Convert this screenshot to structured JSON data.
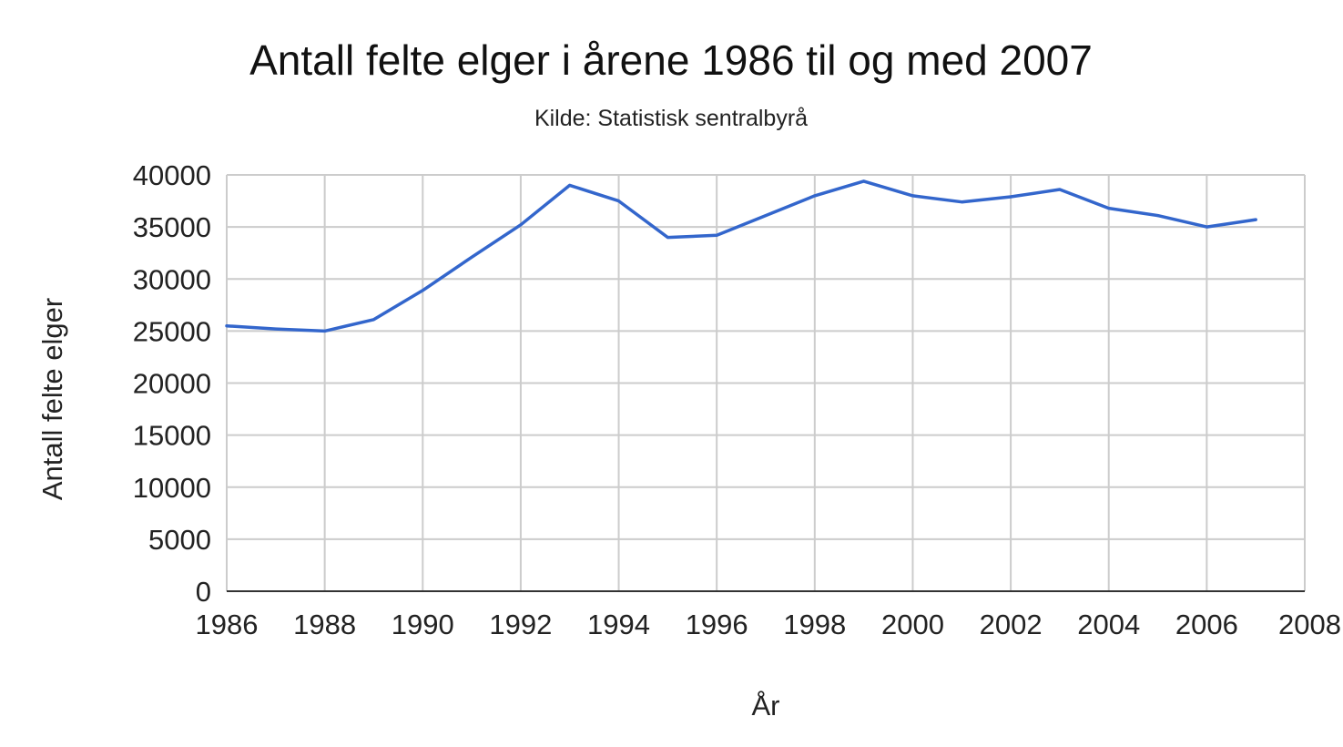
{
  "chart_data": {
    "type": "line",
    "title": "Antall felte elger i årene 1986 til og med 2007",
    "subtitle": "Kilde: Statistisk sentralbyrå",
    "xlabel": "År",
    "ylabel": "Antall felte elger",
    "x": [
      1986,
      1987,
      1988,
      1989,
      1990,
      1991,
      1992,
      1993,
      1994,
      1995,
      1996,
      1997,
      1998,
      1999,
      2000,
      2001,
      2002,
      2003,
      2004,
      2005,
      2006,
      2007
    ],
    "series": [
      {
        "values": [
          25500,
          25200,
          25000,
          26100,
          28900,
          32100,
          35200,
          39000,
          37500,
          34000,
          34200,
          36100,
          38000,
          39400,
          38000,
          37400,
          37900,
          38600,
          36800,
          36100,
          35000,
          35700
        ],
        "color": "#3366cc"
      }
    ],
    "xlim": [
      1986,
      2008
    ],
    "ylim": [
      0,
      40000
    ],
    "x_ticks": [
      "1986",
      "1988",
      "1990",
      "1992",
      "1994",
      "1996",
      "1998",
      "2000",
      "2002",
      "2004",
      "2006",
      "2008"
    ],
    "y_ticks": [
      "0",
      "5000",
      "10000",
      "15000",
      "20000",
      "25000",
      "30000",
      "35000",
      "40000"
    ],
    "grid": true,
    "legend": "none",
    "colors": {
      "grid": "#cccccc",
      "axis": "#333333",
      "series": "#3366cc"
    }
  }
}
